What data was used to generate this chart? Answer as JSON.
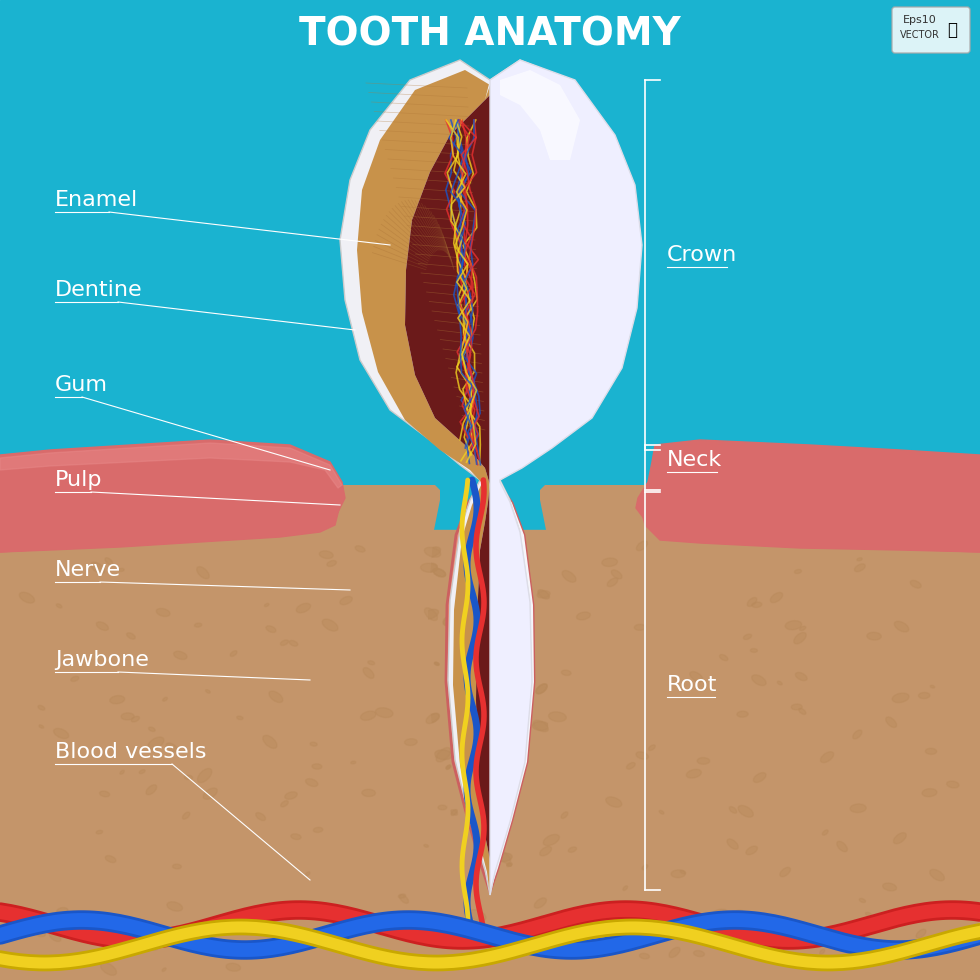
{
  "title": "TOOTH ANATOMY",
  "title_color": "#ffffff",
  "title_fontsize": 28,
  "bg_color_top": "#1ab3d0",
  "bg_color_bottom": "#d4a96a",
  "gum_color": "#d96b6b",
  "jawbone_color": "#c4956a",
  "enamel_color": "#f0f0f5",
  "dentine_color": "#c8924a",
  "pulp_color": "#6b1a1a",
  "root_canal_color": "#c8924a",
  "cementum_color": "#e8a87c",
  "labels_left": [
    "Enamel",
    "Dentine",
    "Gum",
    "Pulp",
    "Nerve",
    "Jawbone",
    "Blood vessels"
  ],
  "labels_right": [
    "Crown",
    "Neck",
    "Root"
  ],
  "label_color": "#ffffff",
  "label_fontsize": 16,
  "vessel_colors": [
    "#1a56c8",
    "#e63030",
    "#f0d020"
  ]
}
